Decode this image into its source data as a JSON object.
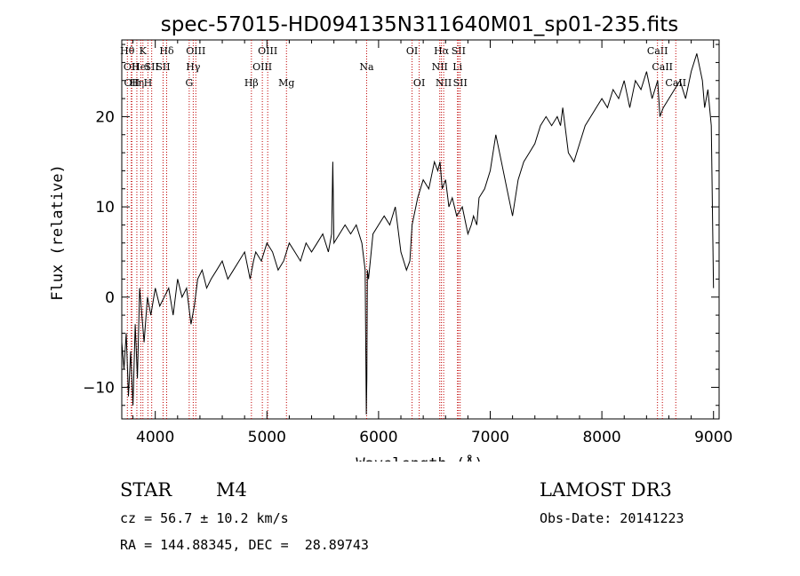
{
  "chart_data": {
    "type": "line",
    "title": "spec-57015-HD094135N311640M01_sp01-235.fits",
    "xlabel": "Wavelength (Å)",
    "ylabel": "Flux (relative)",
    "xlim": [
      3700,
      9050
    ],
    "ylim": [
      -13.5,
      28.5
    ],
    "xticks": [
      4000,
      5000,
      6000,
      7000,
      8000,
      9000
    ],
    "yticks": [
      -10,
      0,
      10,
      20
    ],
    "xtick_labels": [
      "4000",
      "5000",
      "6000",
      "7000",
      "8000",
      "9000"
    ],
    "ytick_labels": [
      "−10",
      "0",
      "10",
      "20"
    ],
    "line_color": "#000000",
    "marker_color": "#c00000",
    "series": [
      {
        "name": "flux",
        "x": [
          3700,
          3720,
          3740,
          3760,
          3780,
          3800,
          3820,
          3840,
          3860,
          3880,
          3900,
          3930,
          3960,
          4000,
          4040,
          4080,
          4120,
          4160,
          4200,
          4240,
          4280,
          4320,
          4350,
          4380,
          4420,
          4460,
          4500,
          4550,
          4600,
          4650,
          4700,
          4750,
          4800,
          4850,
          4880,
          4900,
          4950,
          5000,
          5050,
          5100,
          5150,
          5200,
          5250,
          5300,
          5350,
          5400,
          5450,
          5500,
          5550,
          5580,
          5590,
          5600,
          5650,
          5700,
          5750,
          5800,
          5850,
          5880,
          5890,
          5895,
          5900,
          5910,
          5950,
          6000,
          6050,
          6100,
          6150,
          6200,
          6250,
          6280,
          6300,
          6350,
          6400,
          6450,
          6500,
          6530,
          6550,
          6570,
          6600,
          6630,
          6660,
          6700,
          6750,
          6800,
          6830,
          6850,
          6880,
          6900,
          6950,
          7000,
          7050,
          7100,
          7150,
          7200,
          7250,
          7300,
          7350,
          7400,
          7450,
          7500,
          7550,
          7600,
          7630,
          7650,
          7680,
          7700,
          7750,
          7800,
          7850,
          7900,
          7950,
          8000,
          8050,
          8100,
          8150,
          8200,
          8250,
          8300,
          8350,
          8400,
          8450,
          8500,
          8520,
          8550,
          8600,
          8650,
          8700,
          8750,
          8800,
          8850,
          8900,
          8920,
          8950,
          8980,
          9000
        ],
        "y": [
          -5,
          -8,
          -4,
          -11,
          -6,
          -12,
          -3,
          -9,
          1,
          -2,
          -5,
          0,
          -2,
          1,
          -1,
          0,
          1,
          -2,
          2,
          0,
          1,
          -3,
          -1,
          2,
          3,
          1,
          2,
          3,
          4,
          2,
          3,
          4,
          5,
          2,
          4,
          5,
          4,
          6,
          5,
          3,
          4,
          6,
          5,
          4,
          6,
          5,
          6,
          7,
          5,
          7,
          15,
          6,
          7,
          8,
          7,
          8,
          6,
          3,
          -13,
          -9,
          3,
          2,
          7,
          8,
          9,
          8,
          10,
          5,
          3,
          4,
          8,
          11,
          13,
          12,
          15,
          14,
          15,
          12,
          13,
          10,
          11,
          9,
          10,
          7,
          8,
          9,
          8,
          11,
          12,
          14,
          18,
          15,
          12,
          9,
          13,
          15,
          16,
          17,
          19,
          20,
          19,
          20,
          19,
          21,
          18,
          16,
          15,
          17,
          19,
          20,
          21,
          22,
          21,
          23,
          22,
          24,
          21,
          24,
          23,
          25,
          22,
          24,
          20,
          21,
          22,
          23,
          24,
          22,
          25,
          27,
          24,
          21,
          23,
          19,
          1
        ]
      }
    ],
    "line_markers": [
      {
        "x": 3750,
        "label": "Hθ",
        "row": 0
      },
      {
        "x": 3785,
        "label": "OII",
        "row": 1
      },
      {
        "x": 3790,
        "label": "OII",
        "row": 2
      },
      {
        "x": 3835,
        "label": "Hη",
        "row": 2
      },
      {
        "x": 3870,
        "label": "HeI",
        "row": 1
      },
      {
        "x": 3889,
        "label": "K",
        "row": 0
      },
      {
        "x": 3934,
        "label": "H",
        "row": 2
      },
      {
        "x": 3968,
        "label": "SII",
        "row": 1
      },
      {
        "x": 4102,
        "label": "Hδ",
        "row": 0
      },
      {
        "x": 4070,
        "label": "SII",
        "row": 1
      },
      {
        "x": 4304,
        "label": "G",
        "row": 2
      },
      {
        "x": 4340,
        "label": "Hγ",
        "row": 1
      },
      {
        "x": 4363,
        "label": "OIII",
        "row": 0
      },
      {
        "x": 4861,
        "label": "Hβ",
        "row": 2
      },
      {
        "x": 4959,
        "label": "OIII",
        "row": 1
      },
      {
        "x": 5007,
        "label": "OIII",
        "row": 0
      },
      {
        "x": 5175,
        "label": "Mg",
        "row": 2
      },
      {
        "x": 5893,
        "label": "Na",
        "row": 1
      },
      {
        "x": 6300,
        "label": "OI",
        "row": 0
      },
      {
        "x": 6364,
        "label": "OI",
        "row": 2
      },
      {
        "x": 6548,
        "label": "NII",
        "row": 1
      },
      {
        "x": 6563,
        "label": "Hα",
        "row": 0
      },
      {
        "x": 6583,
        "label": "NII",
        "row": 2
      },
      {
        "x": 6707,
        "label": "Li",
        "row": 1
      },
      {
        "x": 6716,
        "label": "SII",
        "row": 0
      },
      {
        "x": 6731,
        "label": "SII",
        "row": 2
      },
      {
        "x": 8498,
        "label": "CaII",
        "row": 0
      },
      {
        "x": 8542,
        "label": "CaII",
        "row": 1
      },
      {
        "x": 8662,
        "label": "CaII",
        "row": 2
      }
    ]
  },
  "info": {
    "object_class": "STAR",
    "subclass": "M4",
    "survey": "LAMOST DR3",
    "velocity": "cz = 56.7 ± 10.2 km/s",
    "obs_date": "Obs-Date: 20141223",
    "coords": "RA = 144.88345, DEC =  28.89743"
  }
}
